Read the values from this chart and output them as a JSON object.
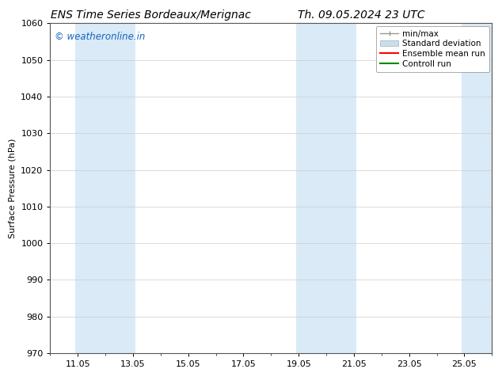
{
  "title_left": "ENS Time Series Bordeaux/Merignac",
  "title_right": "Th. 09.05.2024 23 UTC",
  "ylabel": "Surface Pressure (hPa)",
  "ylim": [
    970,
    1060
  ],
  "yticks": [
    970,
    980,
    990,
    1000,
    1010,
    1020,
    1030,
    1040,
    1050,
    1060
  ],
  "xlim": [
    10.0,
    26.0
  ],
  "xtick_labels": [
    "11.05",
    "13.05",
    "15.05",
    "17.05",
    "19.05",
    "21.05",
    "23.05",
    "25.05"
  ],
  "xtick_positions": [
    11,
    13,
    15,
    17,
    19,
    21,
    23,
    25
  ],
  "watermark": "© weatheronline.in",
  "watermark_color": "#1565c0",
  "bg_color": "#ffffff",
  "plot_bg_color": "#ffffff",
  "shaded_bands": [
    {
      "x_start": 10.9,
      "x_end": 13.1,
      "color": "#daeaf7"
    },
    {
      "x_start": 18.9,
      "x_end": 21.1,
      "color": "#daeaf7"
    },
    {
      "x_start": 24.9,
      "x_end": 26.0,
      "color": "#daeaf7"
    }
  ],
  "legend_items": [
    {
      "label": "min/max",
      "color": "#aaaaaa",
      "type": "errorbar"
    },
    {
      "label": "Standard deviation",
      "color": "#c8dff0",
      "type": "bar"
    },
    {
      "label": "Ensemble mean run",
      "color": "#ff0000",
      "type": "line"
    },
    {
      "label": "Controll run",
      "color": "#008800",
      "type": "line"
    }
  ],
  "title_fontsize": 10,
  "axis_label_fontsize": 8,
  "tick_fontsize": 8,
  "legend_fontsize": 7.5,
  "grid_color": "#cccccc",
  "spine_color": "#555555"
}
